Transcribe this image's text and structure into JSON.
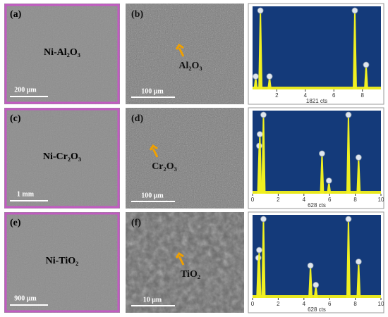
{
  "panels": [
    {
      "micrograph": {
        "label": "(a)",
        "material": "Ni-Al₂O₃",
        "scale_bar": "200 μm"
      },
      "detail": {
        "label": "(b)",
        "particle": "Al₂O₃",
        "scale_bar": "100 μm"
      },
      "spectrum": {
        "type": "line",
        "xlim": [
          0.3,
          9.3
        ],
        "xticks": [
          2,
          4,
          6,
          8
        ],
        "ylim": [
          0,
          100
        ],
        "counts_label": "1821 cts",
        "peaks": {
          "x": [
            0.52,
            0.85,
            1.49,
            7.47,
            8.26
          ],
          "height": [
            15,
            100,
            15,
            100,
            30
          ]
        }
      }
    },
    {
      "micrograph": {
        "label": "(c)",
        "material": "Ni-Cr₂O₃",
        "scale_bar": "1 mm"
      },
      "detail": {
        "label": "(d)",
        "particle": "Cr₂O₃",
        "scale_bar": "100 μm"
      },
      "spectrum": {
        "type": "line",
        "xlim": [
          0,
          10
        ],
        "xticks": [
          0,
          2,
          4,
          6,
          8,
          10
        ],
        "ylim": [
          0,
          100
        ],
        "counts_label": "628 cts",
        "peaks": {
          "x": [
            0.52,
            0.57,
            0.85,
            5.41,
            5.95,
            7.47,
            8.26
          ],
          "height": [
            60,
            75,
            100,
            50,
            15,
            100,
            45
          ]
        }
      }
    },
    {
      "micrograph": {
        "label": "(e)",
        "material": "Ni-TiO₂",
        "scale_bar": "900 μm"
      },
      "detail": {
        "label": "(f)",
        "particle": "TiO₂",
        "scale_bar": "10 μm"
      },
      "spectrum": {
        "type": "line",
        "xlim": [
          0,
          10
        ],
        "xticks": [
          0,
          2,
          4,
          6,
          8,
          10
        ],
        "ylim": [
          0,
          100
        ],
        "counts_label": "628 cts",
        "peaks": {
          "x": [
            0.45,
            0.52,
            0.85,
            4.51,
            4.93,
            7.47,
            8.26
          ],
          "height": [
            50,
            60,
            100,
            40,
            15,
            100,
            45
          ]
        }
      }
    }
  ]
}
